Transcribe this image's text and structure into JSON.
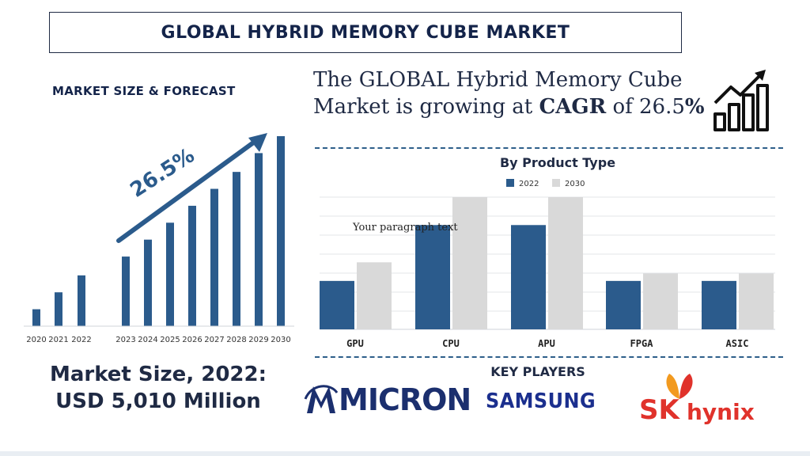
{
  "title": "GLOBAL HYBRID MEMORY CUBE MARKET",
  "left_panel": {
    "heading": "MARKET SIZE & FORECAST",
    "cagr_label": "26.5%",
    "market_size_line1": "Market Size, 2022:",
    "market_size_line2": "USD 5,010  Million"
  },
  "headline": {
    "line1": "The GLOBAL Hybrid Memory Cube",
    "line2_prefix": "Market is growing at ",
    "line2_bold": "CAGR",
    "line2_mid": " of 26.5",
    "line2_pct": "%"
  },
  "overlay_text": "Your paragraph text",
  "key_players": {
    "heading": "KEY PLAYERS",
    "micron": "MICRON",
    "samsung": "SAMSUNG",
    "sk": "SK",
    "hynix": "hynix"
  },
  "colors": {
    "dark_blue": "#2b5b8c",
    "light_gray": "#d9d9d9",
    "navy": "#14244a",
    "sk_red": "#e0322b",
    "sk_orange": "#f29a1f"
  },
  "chart_data": [
    {
      "type": "bar",
      "title": "",
      "categories": [
        "2020",
        "2021",
        "2022",
        "2023",
        "2024",
        "2025",
        "2026",
        "2027",
        "2028",
        "2029",
        "2030"
      ],
      "values": [
        9,
        18,
        27,
        37,
        46,
        55,
        64,
        73,
        82,
        92,
        101
      ],
      "annotation": "26.5%",
      "ylim": [
        0,
        101
      ],
      "grid": false,
      "legend": "none"
    },
    {
      "type": "bar",
      "title": "By Product Type",
      "categories": [
        "GPU",
        "CPU",
        "APU",
        "FPGA",
        "ASIC"
      ],
      "series": [
        {
          "name": "2022",
          "values": [
            26,
            56,
            56,
            26,
            26
          ]
        },
        {
          "name": "2030",
          "values": [
            36,
            71,
            71,
            30,
            30
          ]
        }
      ],
      "ylim": [
        0,
        71
      ],
      "grid": true,
      "legend": "top-center"
    }
  ]
}
